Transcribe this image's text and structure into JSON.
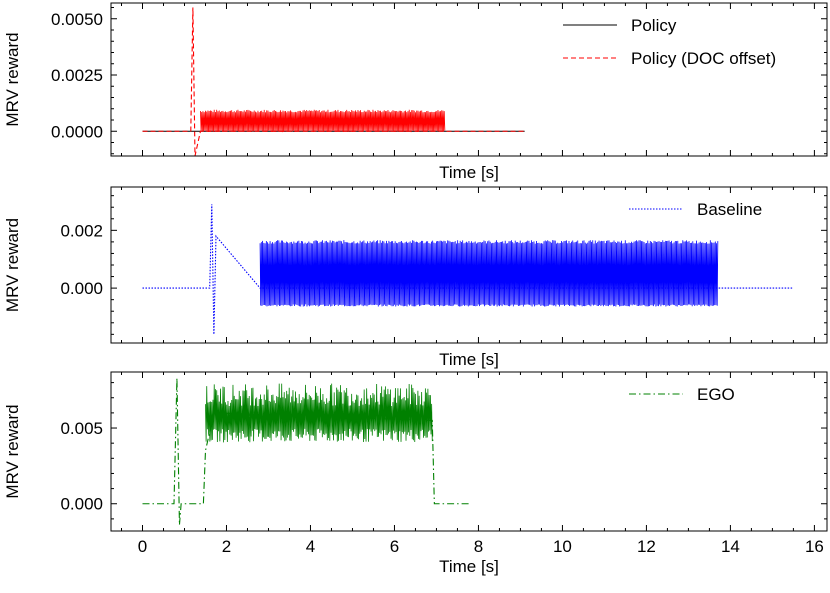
{
  "chart_data": [
    {
      "type": "line",
      "panel": "top",
      "xlabel": "Time [s]",
      "ylabel": "MRV reward",
      "xlim": [
        -0.75,
        16.3
      ],
      "ylim": [
        -0.0011,
        0.0057
      ],
      "xticks": [
        0,
        2,
        4,
        6,
        8,
        10,
        12,
        14,
        16
      ],
      "show_xticklabels": false,
      "yticks": [
        0.0,
        0.0025,
        0.005
      ],
      "ytick_labels": [
        "0.0000",
        "0.0025",
        "0.0050"
      ],
      "legend_position": "top-right",
      "series": [
        {
          "name": "Policy",
          "color": "#000000",
          "style": "solid",
          "x": [
            0,
            9.1
          ],
          "y": [
            0,
            0
          ]
        },
        {
          "name": "Policy (DOC offset)",
          "color": "#ff0000",
          "style": "dashed",
          "spike": {
            "x": 1.2,
            "max": 0.0055,
            "min": -0.0011
          },
          "band": {
            "x_start": 1.38,
            "x_end": 7.2,
            "low": 0.0,
            "high": 0.0009
          },
          "x": [
            0,
            1.15,
            1.2,
            1.25,
            1.38,
            7.2,
            7.25,
            9.1
          ],
          "y": [
            0,
            0,
            0.0055,
            -0.0011,
            0,
            0,
            0,
            0
          ]
        }
      ]
    },
    {
      "type": "line",
      "panel": "middle",
      "xlabel": "Time [s]",
      "ylabel": "MRV reward",
      "xlim": [
        -0.75,
        16.3
      ],
      "ylim": [
        -0.0019,
        0.0035
      ],
      "xticks": [
        0,
        2,
        4,
        6,
        8,
        10,
        12,
        14,
        16
      ],
      "show_xticklabels": false,
      "yticks": [
        0.0,
        0.002
      ],
      "ytick_labels": [
        "0.000",
        "0.002"
      ],
      "legend_position": "top-right",
      "series": [
        {
          "name": "Baseline",
          "color": "#0000ff",
          "style": "dotted",
          "spike": {
            "x": 1.65,
            "max": 0.0029,
            "min": -0.0016
          },
          "band": {
            "x_start": 2.8,
            "x_end": 13.7,
            "low": -0.0006,
            "high": 0.0016
          },
          "x": [
            0,
            1.6,
            1.65,
            1.7,
            1.75,
            2.8,
            13.7,
            15.5
          ],
          "y": [
            0,
            0,
            0.0029,
            -0.0016,
            0.0018,
            0,
            0,
            0
          ]
        }
      ]
    },
    {
      "type": "line",
      "panel": "bottom",
      "xlabel": "Time [s]",
      "ylabel": "MRV reward",
      "xlim": [
        -0.75,
        16.3
      ],
      "ylim": [
        -0.0018,
        0.0087
      ],
      "xticks": [
        0,
        2,
        4,
        6,
        8,
        10,
        12,
        14,
        16
      ],
      "xtick_labels": [
        "0",
        "2",
        "4",
        "6",
        "8",
        "10",
        "12",
        "14",
        "16"
      ],
      "show_xticklabels": true,
      "yticks": [
        0.0,
        0.005
      ],
      "ytick_labels": [
        "0.000",
        "0.005"
      ],
      "legend_position": "top-right",
      "series": [
        {
          "name": "EGO",
          "color": "#008000",
          "style": "dashdot",
          "band": {
            "x_start": 1.5,
            "x_end": 6.9,
            "low": 0.0045,
            "high": 0.0072
          },
          "x": [
            0,
            0.75,
            0.82,
            0.88,
            0.92,
            1.45,
            1.5,
            1.7,
            6.9,
            6.95,
            7.8
          ],
          "y": [
            0,
            0,
            0.0083,
            -0.0014,
            0,
            0,
            0.0035,
            0.006,
            0.0055,
            0,
            0
          ]
        }
      ]
    }
  ]
}
